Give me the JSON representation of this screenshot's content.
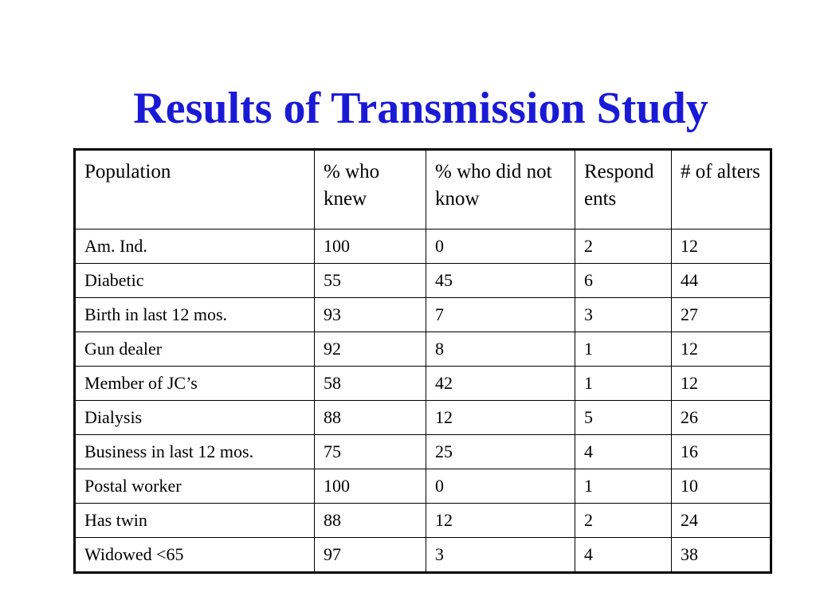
{
  "slide": {
    "title": "Results of Transmission Study",
    "title_color": "#1a1ad6"
  },
  "table": {
    "headers": {
      "population": "Population",
      "pct_knew": "% who knew",
      "pct_not_know": "% who did not know",
      "respondents": "Respond ents",
      "alters": "# of alters"
    },
    "rows": [
      {
        "population": "Am. Ind.",
        "pct_knew": "100",
        "pct_not_know": "0",
        "respondents": "2",
        "alters": "12"
      },
      {
        "population": "Diabetic",
        "pct_knew": "55",
        "pct_not_know": "45",
        "respondents": "6",
        "alters": "44"
      },
      {
        "population": "Birth in last 12 mos.",
        "pct_knew": "93",
        "pct_not_know": "7",
        "respondents": "3",
        "alters": "27"
      },
      {
        "population": "Gun dealer",
        "pct_knew": "92",
        "pct_not_know": "8",
        "respondents": "1",
        "alters": "12"
      },
      {
        "population": "Member of JC’s",
        "pct_knew": "58",
        "pct_not_know": "42",
        "respondents": "1",
        "alters": "12"
      },
      {
        "population": "Dialysis",
        "pct_knew": "88",
        "pct_not_know": "12",
        "respondents": "5",
        "alters": "26"
      },
      {
        "population": "Business in last 12 mos.",
        "pct_knew": "75",
        "pct_not_know": "25",
        "respondents": "4",
        "alters": "16"
      },
      {
        "population": "Postal worker",
        "pct_knew": "100",
        "pct_not_know": "0",
        "respondents": "1",
        "alters": "10"
      },
      {
        "population": "Has twin",
        "pct_knew": "88",
        "pct_not_know": "12",
        "respondents": "2",
        "alters": "24"
      },
      {
        "population": "Widowed <65",
        "pct_knew": "97",
        "pct_not_know": "3",
        "respondents": "4",
        "alters": "38"
      }
    ]
  }
}
